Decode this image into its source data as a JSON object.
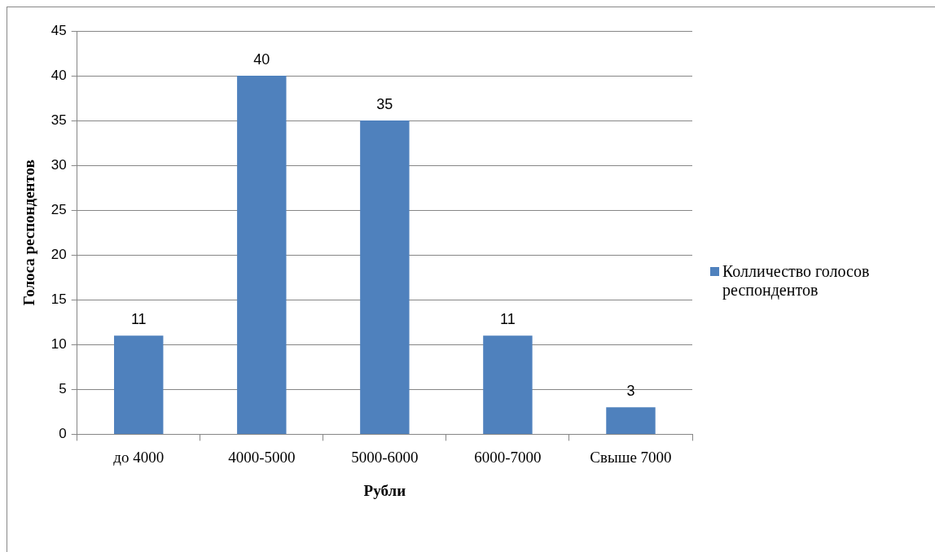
{
  "chart_data": {
    "type": "bar",
    "xlabel": "Рубли",
    "ylabel": "Голоса респондентов",
    "categories": [
      "до 4000",
      "4000-5000",
      "5000-6000",
      "6000-7000",
      "Свыше 7000"
    ],
    "series": [
      {
        "name": "Колличество голосов респондентов",
        "color": "#4f81bd",
        "values": [
          11,
          40,
          35,
          11,
          3
        ]
      }
    ],
    "ylim": [
      0,
      45
    ],
    "yticks": [
      0,
      5,
      10,
      15,
      20,
      25,
      30,
      35,
      40,
      45
    ],
    "grid": "y",
    "legend": "right",
    "data_labels": true
  }
}
